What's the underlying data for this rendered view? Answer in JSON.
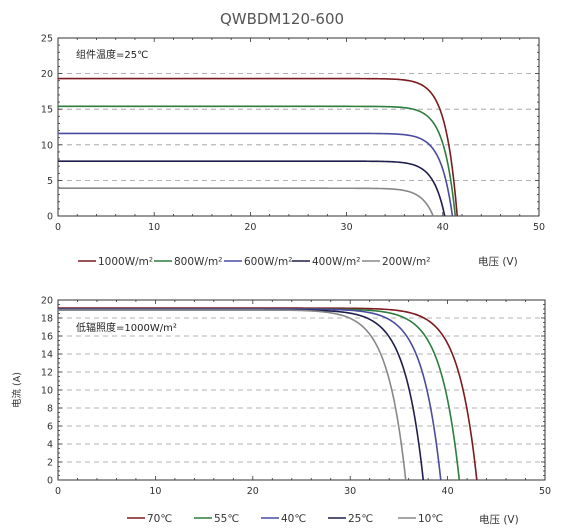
{
  "title": "QWBDM120-600",
  "chart_data": [
    {
      "type": "line",
      "annotation": "组件温度=25℃",
      "xlabel": "电压 (V)",
      "ylabel": "",
      "xlim": [
        0,
        50
      ],
      "ylim": [
        0,
        25
      ],
      "xticks": [
        0,
        10,
        20,
        30,
        40,
        50
      ],
      "yticks": [
        0,
        5,
        10,
        15,
        20,
        25
      ],
      "grid": "horizontal dashed",
      "legend_position": "below",
      "series": [
        {
          "name": "1000W/m²",
          "color": "#7b1b1f",
          "isc": 19.3,
          "voc": 41.5,
          "knee": 36,
          "bend": 1.2,
          "x": [
            0,
            10,
            20,
            30,
            34,
            36,
            38,
            39.5,
            40.5,
            41.5
          ],
          "y": [
            19.3,
            19.3,
            19.3,
            19.3,
            19.1,
            18.2,
            15.6,
            11.5,
            6.5,
            0
          ]
        },
        {
          "name": "800W/m²",
          "color": "#2e7d3e",
          "isc": 15.4,
          "voc": 41.3,
          "knee": 35.5,
          "bend": 1.2,
          "x": [
            0,
            10,
            20,
            30,
            34,
            36,
            38,
            39.5,
            40.5,
            41.3
          ],
          "y": [
            15.4,
            15.4,
            15.4,
            15.4,
            15.1,
            14.1,
            11.7,
            8.3,
            4.6,
            0
          ]
        },
        {
          "name": "600W/m²",
          "color": "#4b4ba0",
          "isc": 11.6,
          "voc": 41.0,
          "knee": 35,
          "bend": 1.2,
          "x": [
            0,
            10,
            20,
            30,
            34,
            36,
            38,
            39.5,
            40.5,
            41.0
          ],
          "y": [
            11.6,
            11.6,
            11.6,
            11.6,
            11.3,
            10.4,
            8.2,
            5.4,
            2.0,
            0
          ]
        },
        {
          "name": "400W/m²",
          "color": "#1f1f4d",
          "isc": 7.7,
          "voc": 40.2,
          "knee": 34,
          "bend": 1.2,
          "x": [
            0,
            10,
            20,
            30,
            34,
            36,
            38,
            39.5,
            40.2
          ],
          "y": [
            7.7,
            7.7,
            7.7,
            7.7,
            7.5,
            6.9,
            5.1,
            2.5,
            0
          ]
        },
        {
          "name": "200W/m²",
          "color": "#888888",
          "isc": 3.9,
          "voc": 39.0,
          "knee": 33,
          "bend": 1.2,
          "x": [
            0,
            10,
            20,
            30,
            34,
            36,
            37.5,
            38.5,
            39.0
          ],
          "y": [
            3.9,
            3.9,
            3.9,
            3.9,
            3.8,
            3.4,
            2.6,
            1.4,
            0
          ]
        }
      ]
    },
    {
      "type": "line",
      "annotation": "低辐照度=1000W/m²",
      "xlabel": "电压 (V)",
      "ylabel": "电流 (A)",
      "xlim": [
        0,
        50
      ],
      "ylim": [
        0,
        20
      ],
      "xticks": [
        0,
        10,
        20,
        30,
        40,
        50
      ],
      "yticks": [
        0,
        2,
        4,
        6,
        8,
        10,
        12,
        14,
        16,
        18,
        20
      ],
      "grid": "horizontal dashed",
      "legend_position": "below",
      "series": [
        {
          "name": "70℃",
          "color": "#7b1b1f",
          "isc": 19.1,
          "voc": 43.0,
          "knee": 34,
          "bend": 1.9,
          "x": [
            0,
            10,
            20,
            30,
            34,
            37,
            39,
            41,
            42.2,
            43.0
          ],
          "y": [
            19.1,
            19.1,
            19.1,
            19.1,
            18.9,
            17.9,
            15.5,
            10.5,
            5.5,
            0
          ]
        },
        {
          "name": "55℃",
          "color": "#2e7d3e",
          "isc": 19.0,
          "voc": 41.2,
          "knee": 32.5,
          "bend": 1.9,
          "x": [
            0,
            10,
            20,
            30,
            32.5,
            35.5,
            37.5,
            39.5,
            40.5,
            41.2
          ],
          "y": [
            19.0,
            19.0,
            19.0,
            19.0,
            18.8,
            17.8,
            15.2,
            10.0,
            5.5,
            0
          ]
        },
        {
          "name": "40℃",
          "color": "#4b4ba0",
          "isc": 19.0,
          "voc": 39.3,
          "knee": 31,
          "bend": 1.9,
          "x": [
            0,
            10,
            20,
            28,
            31,
            34,
            36,
            37.8,
            38.8,
            39.3
          ],
          "y": [
            19.0,
            19.0,
            19.0,
            19.0,
            18.8,
            17.6,
            14.8,
            9.5,
            5.0,
            0
          ]
        },
        {
          "name": "25℃",
          "color": "#1f1f4d",
          "isc": 18.9,
          "voc": 37.5,
          "knee": 29.5,
          "bend": 1.9,
          "x": [
            0,
            10,
            20,
            27,
            29.5,
            32,
            34,
            36,
            37,
            37.5
          ],
          "y": [
            18.9,
            18.9,
            18.9,
            18.9,
            18.7,
            17.6,
            14.8,
            9.0,
            4.5,
            0
          ]
        },
        {
          "name": "10℃",
          "color": "#888888",
          "isc": 18.9,
          "voc": 35.7,
          "knee": 28,
          "bend": 1.9,
          "x": [
            0,
            10,
            20,
            26,
            28,
            30.5,
            32.5,
            34.3,
            35.2,
            35.7
          ],
          "y": [
            18.9,
            18.9,
            18.9,
            18.9,
            18.7,
            17.4,
            14.5,
            9.0,
            4.5,
            0
          ]
        }
      ]
    }
  ]
}
